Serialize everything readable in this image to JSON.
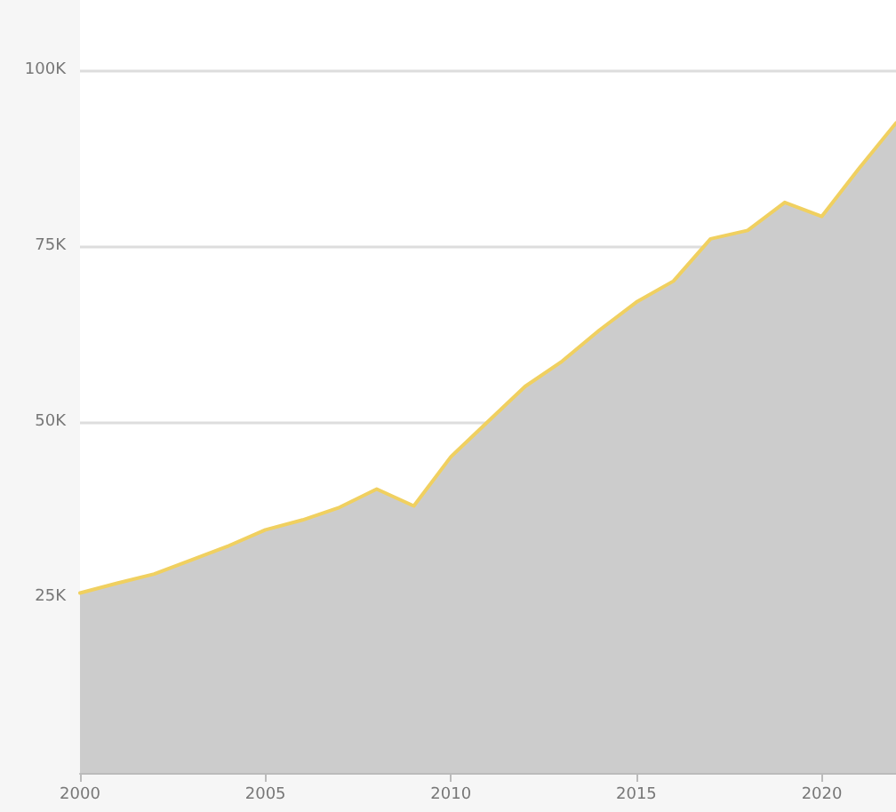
{
  "chart_data": {
    "type": "area",
    "x": [
      2000,
      2001,
      2002,
      2003,
      2004,
      2005,
      2006,
      2007,
      2008,
      2009,
      2010,
      2011,
      2012,
      2013,
      2014,
      2015,
      2016,
      2017,
      2018,
      2019,
      2020,
      2021,
      2022
    ],
    "series": [
      {
        "color": "#f0d060",
        "values": [
          25600,
          27000,
          28300,
          30300,
          32300,
          34600,
          36000,
          37800,
          40400,
          38000,
          45000,
          50000,
          55000,
          58600,
          63000,
          67000,
          70000,
          76000,
          77200,
          81200,
          79200,
          86000,
          92500
        ]
      }
    ],
    "xlim": [
      2000,
      2022
    ],
    "xticks": [
      2000,
      2005,
      2010,
      2015,
      2020
    ],
    "ylim": [
      0,
      110000
    ],
    "yticks": [
      {
        "value": 25000,
        "label": "25K"
      },
      {
        "value": 50000,
        "label": "50K"
      },
      {
        "value": 75000,
        "label": "75K"
      },
      {
        "value": 100000,
        "label": "100K"
      }
    ],
    "grid": "y",
    "marker": "none"
  }
}
